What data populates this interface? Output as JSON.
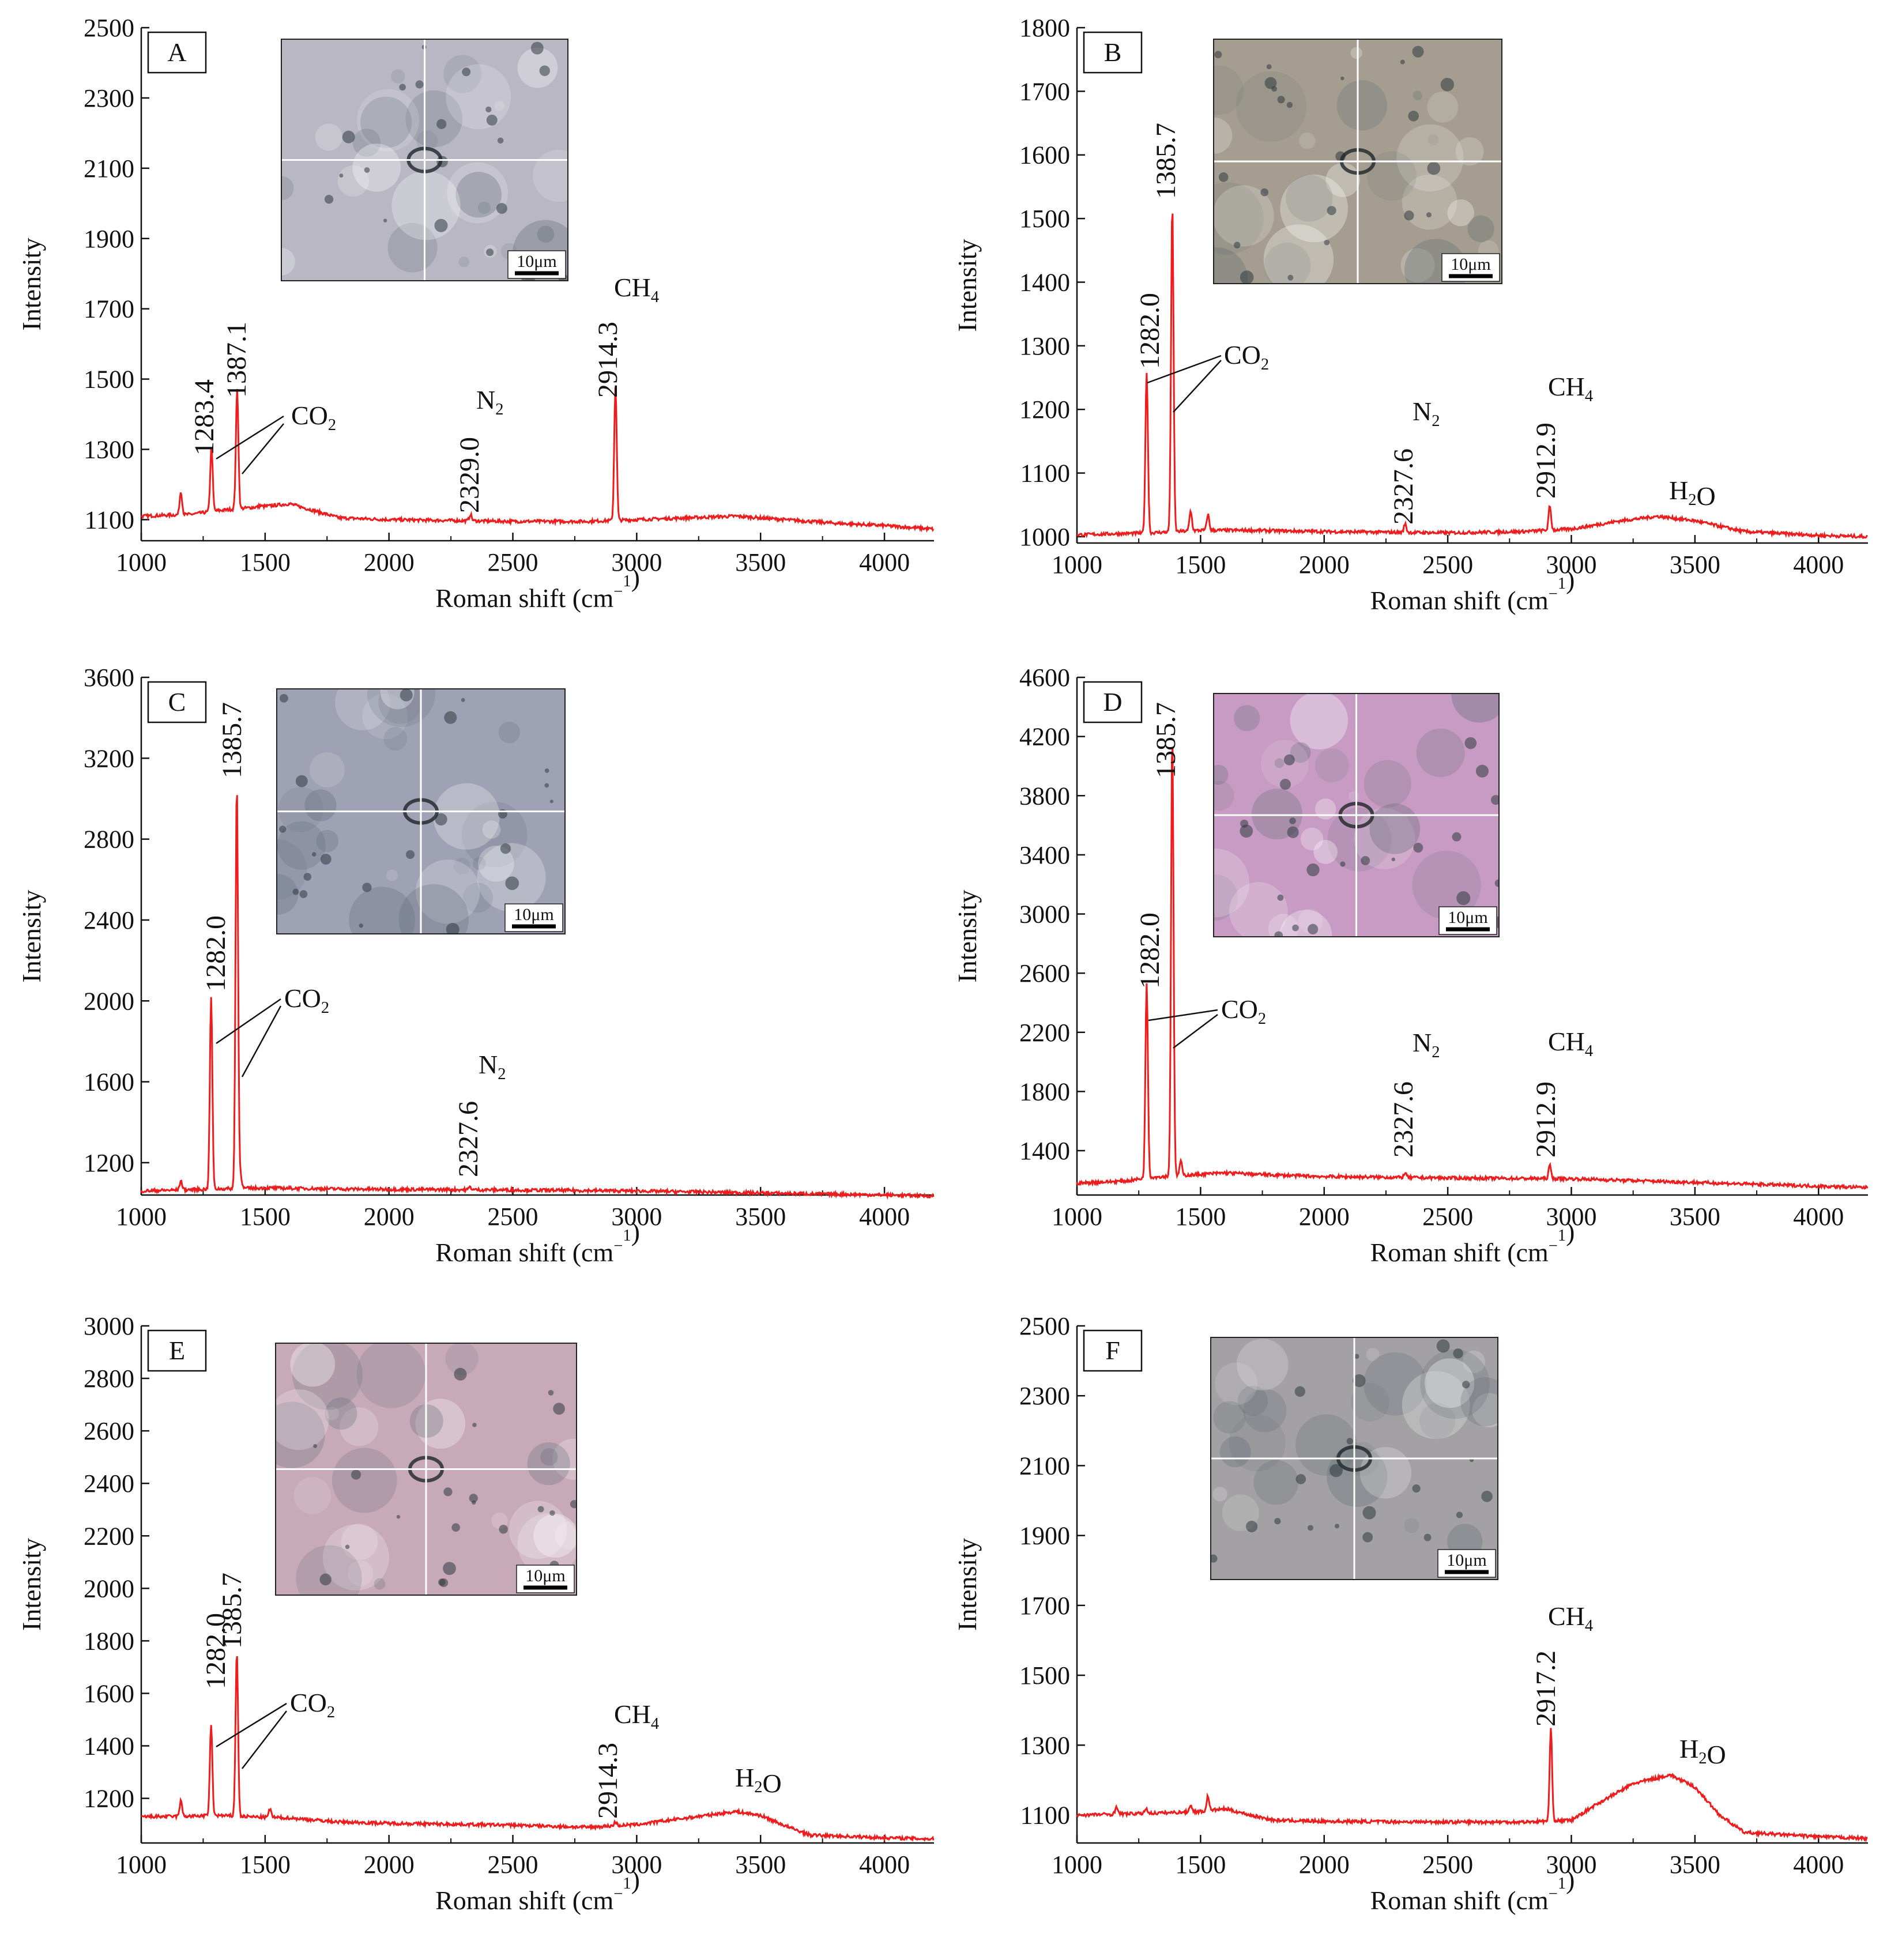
{
  "figure": {
    "spectrum_color": "#ee1c1c",
    "scale_bar_label": "10μm"
  },
  "chart_data": [
    {
      "type": "line",
      "panel_label": "A",
      "xlabel": "Roman shift (cm⁻¹)",
      "ylabel": "Intensity",
      "xlim": [
        1000,
        4200
      ],
      "ylim": [
        1040,
        2500
      ],
      "xticks": [
        1000,
        1500,
        2000,
        2500,
        3000,
        3500,
        4000
      ],
      "yticks": [
        1100,
        1300,
        1500,
        1700,
        1900,
        2100,
        2300,
        2500
      ],
      "grid": false,
      "series": [
        {
          "peaks": [
            [
              1160,
              1180
            ],
            [
              1283.4,
              1305
            ],
            [
              1387.1,
              1470
            ],
            [
              1480,
              1140
            ],
            [
              1530,
              1140
            ],
            [
              2329.0,
              1115
            ],
            [
              2914.3,
              1480
            ]
          ],
          "baseline": [
            [
              1000,
              1110
            ],
            [
              1200,
              1115
            ],
            [
              1300,
              1125
            ],
            [
              1500,
              1138
            ],
            [
              1600,
              1145
            ],
            [
              1700,
              1125
            ],
            [
              1800,
              1105
            ],
            [
              2000,
              1100
            ],
            [
              2300,
              1097
            ],
            [
              2500,
              1095
            ],
            [
              2800,
              1095
            ],
            [
              3000,
              1100
            ],
            [
              3200,
              1105
            ],
            [
              3400,
              1110
            ],
            [
              3600,
              1100
            ],
            [
              3800,
              1090
            ],
            [
              4000,
              1083
            ],
            [
              4200,
              1073
            ]
          ]
        }
      ],
      "annotations": [
        {
          "text": "1283.4",
          "x": 1283.4
        },
        {
          "text": "1387.1",
          "x": 1387.1
        },
        {
          "text": "2329.0",
          "x": 2329.0
        },
        {
          "text": "2914.3",
          "x": 2914.3
        },
        {
          "text": "CO₂"
        },
        {
          "text": "N₂"
        },
        {
          "text": "CH₄"
        }
      ],
      "inset_tint": "#b8b7c3"
    },
    {
      "type": "line",
      "panel_label": "B",
      "xlabel": "Roman shift (cm⁻¹)",
      "ylabel": "Intensity",
      "xlim": [
        1000,
        4200
      ],
      "ylim": [
        990,
        1800
      ],
      "xticks": [
        1000,
        1500,
        2000,
        2500,
        3000,
        3500,
        4000
      ],
      "yticks": [
        1000,
        1100,
        1200,
        1300,
        1400,
        1500,
        1600,
        1700,
        1800
      ],
      "grid": false,
      "series": [
        {
          "peaks": [
            [
              1282.0,
              1258
            ],
            [
              1385.7,
              1525
            ],
            [
              1460,
              1040
            ],
            [
              1530,
              1035
            ],
            [
              2327.6,
              1020
            ],
            [
              2912.9,
              1048
            ]
          ],
          "baseline": [
            [
              1000,
              1003
            ],
            [
              1300,
              1006
            ],
            [
              1500,
              1010
            ],
            [
              1700,
              1010
            ],
            [
              2000,
              1008
            ],
            [
              2500,
              1006
            ],
            [
              2800,
              1008
            ],
            [
              3000,
              1012
            ],
            [
              3200,
              1025
            ],
            [
              3350,
              1032
            ],
            [
              3500,
              1025
            ],
            [
              3700,
              1008
            ],
            [
              4000,
              1002
            ],
            [
              4200,
              1000
            ]
          ]
        }
      ],
      "annotations": [
        {
          "text": "1282.0",
          "x": 1282.0
        },
        {
          "text": "1385.7",
          "x": 1385.7
        },
        {
          "text": "2327.6",
          "x": 2327.6
        },
        {
          "text": "2912.9",
          "x": 2912.9
        },
        {
          "text": "CO₂"
        },
        {
          "text": "N₂"
        },
        {
          "text": "CH₄"
        },
        {
          "text": "H₂O"
        }
      ],
      "inset_tint": "#a59e90"
    },
    {
      "type": "line",
      "panel_label": "C",
      "xlabel": "Roman shift (cm⁻¹)",
      "ylabel": "Intensity",
      "xlim": [
        1000,
        4200
      ],
      "ylim": [
        1040,
        3600
      ],
      "xticks": [
        1000,
        1500,
        2000,
        2500,
        3000,
        3500,
        4000
      ],
      "yticks": [
        1200,
        1600,
        2000,
        2400,
        2800,
        3200,
        3600
      ],
      "grid": false,
      "series": [
        {
          "peaks": [
            [
              1160,
              1110
            ],
            [
              1282.0,
              2020
            ],
            [
              1385.7,
              3080
            ],
            [
              1400,
              1150
            ],
            [
              2327.6,
              1080
            ]
          ],
          "baseline": [
            [
              1000,
              1060
            ],
            [
              1300,
              1070
            ],
            [
              1500,
              1075
            ],
            [
              1800,
              1070
            ],
            [
              2000,
              1068
            ],
            [
              2500,
              1065
            ],
            [
              3000,
              1060
            ],
            [
              3500,
              1050
            ],
            [
              4000,
              1040
            ],
            [
              4200,
              1035
            ]
          ]
        }
      ],
      "annotations": [
        {
          "text": "1282.0",
          "x": 1282.0
        },
        {
          "text": "1385.7",
          "x": 1385.7
        },
        {
          "text": "2327.6",
          "x": 2327.6
        },
        {
          "text": "CO₂"
        },
        {
          "text": "N₂"
        }
      ],
      "inset_tint": "#9fa1b4"
    },
    {
      "type": "line",
      "panel_label": "D",
      "xlabel": "Roman shift (cm⁻¹)",
      "ylabel": "Intensity",
      "xlim": [
        1000,
        4200
      ],
      "ylim": [
        1100,
        4600
      ],
      "xticks": [
        1000,
        1500,
        2000,
        2500,
        3000,
        3500,
        4000
      ],
      "yticks": [
        1400,
        1800,
        2200,
        2600,
        3000,
        3400,
        3800,
        4200,
        4600
      ],
      "grid": false,
      "series": [
        {
          "peaks": [
            [
              1282.0,
              2530
            ],
            [
              1385.7,
              4230
            ],
            [
              1420,
              1330
            ],
            [
              2327.6,
              1250
            ],
            [
              2912.9,
              1300
            ]
          ],
          "baseline": [
            [
              1000,
              1180
            ],
            [
              1200,
              1195
            ],
            [
              1300,
              1220
            ],
            [
              1500,
              1240
            ],
            [
              1600,
              1250
            ],
            [
              1800,
              1235
            ],
            [
              2000,
              1225
            ],
            [
              2500,
              1215
            ],
            [
              3000,
              1210
            ],
            [
              3500,
              1185
            ],
            [
              4000,
              1160
            ],
            [
              4200,
              1150
            ]
          ]
        }
      ],
      "annotations": [
        {
          "text": "1282.0",
          "x": 1282.0
        },
        {
          "text": "1385.7",
          "x": 1385.7
        },
        {
          "text": "2327.6",
          "x": 2327.6
        },
        {
          "text": "2912.9",
          "x": 2912.9
        },
        {
          "text": "CO₂"
        },
        {
          "text": "N₂"
        },
        {
          "text": "CH₄"
        }
      ],
      "inset_tint": "#c79bc3"
    },
    {
      "type": "line",
      "panel_label": "E",
      "xlabel": "Roman shift (cm⁻¹)",
      "ylabel": "Intensity",
      "xlim": [
        1000,
        4200
      ],
      "ylim": [
        1030,
        3000
      ],
      "xticks": [
        1000,
        1500,
        2000,
        2500,
        3000,
        3500,
        4000
      ],
      "yticks": [
        1200,
        1400,
        1600,
        1800,
        2000,
        2200,
        2400,
        2600,
        2800,
        3000
      ],
      "grid": false,
      "series": [
        {
          "peaks": [
            [
              1160,
              1190
            ],
            [
              1282.0,
              1480
            ],
            [
              1385.7,
              1760
            ],
            [
              1520,
              1160
            ],
            [
              2914.3,
              1110
            ]
          ],
          "baseline": [
            [
              1000,
              1130
            ],
            [
              1200,
              1132
            ],
            [
              1300,
              1135
            ],
            [
              1500,
              1128
            ],
            [
              1600,
              1125
            ],
            [
              1800,
              1110
            ],
            [
              2000,
              1105
            ],
            [
              2500,
              1098
            ],
            [
              2800,
              1090
            ],
            [
              3000,
              1100
            ],
            [
              3200,
              1125
            ],
            [
              3400,
              1150
            ],
            [
              3500,
              1135
            ],
            [
              3600,
              1095
            ],
            [
              3700,
              1060
            ],
            [
              4000,
              1050
            ],
            [
              4200,
              1045
            ]
          ]
        }
      ],
      "annotations": [
        {
          "text": "1282.0",
          "x": 1282.0
        },
        {
          "text": "1385.7",
          "x": 1385.7
        },
        {
          "text": "2914.3",
          "x": 2914.3
        },
        {
          "text": "CO₂"
        },
        {
          "text": "CH₄"
        },
        {
          "text": "H₂O"
        }
      ],
      "inset_tint": "#c7a9b8"
    },
    {
      "type": "line",
      "panel_label": "F",
      "xlabel": "Roman shift (cm⁻¹)",
      "ylabel": "Intensity",
      "xlim": [
        1000,
        4200
      ],
      "ylim": [
        1020,
        2500
      ],
      "xticks": [
        1000,
        1500,
        2000,
        2500,
        3000,
        3500,
        4000
      ],
      "yticks": [
        1100,
        1300,
        1500,
        1700,
        1900,
        2100,
        2300,
        2500
      ],
      "grid": false,
      "series": [
        {
          "peaks": [
            [
              1160,
              1125
            ],
            [
              1280,
              1120
            ],
            [
              1460,
              1130
            ],
            [
              1530,
              1155
            ],
            [
              2917.2,
              1345
            ]
          ],
          "baseline": [
            [
              1000,
              1100
            ],
            [
              1300,
              1105
            ],
            [
              1500,
              1110
            ],
            [
              1600,
              1118
            ],
            [
              1700,
              1100
            ],
            [
              1800,
              1085
            ],
            [
              2000,
              1082
            ],
            [
              2500,
              1080
            ],
            [
              2800,
              1080
            ],
            [
              3000,
              1085
            ],
            [
              3100,
              1130
            ],
            [
              3250,
              1190
            ],
            [
              3400,
              1215
            ],
            [
              3500,
              1180
            ],
            [
              3600,
              1100
            ],
            [
              3700,
              1050
            ],
            [
              4000,
              1038
            ],
            [
              4200,
              1033
            ]
          ]
        }
      ],
      "annotations": [
        {
          "text": "2917.2",
          "x": 2917.2
        },
        {
          "text": "CH₄"
        },
        {
          "text": "H₂O"
        }
      ],
      "inset_tint": "#a3a1a3"
    }
  ]
}
